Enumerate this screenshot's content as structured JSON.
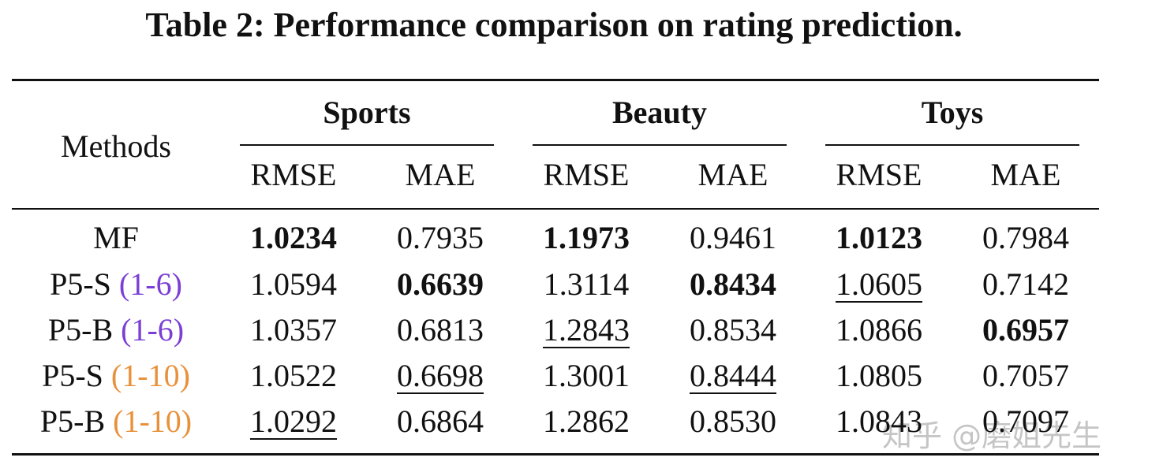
{
  "title": "Table 2: Performance comparison on rating prediction.",
  "table": {
    "header": {
      "methods": "Methods",
      "groups": [
        "Sports",
        "Beauty",
        "Toys"
      ],
      "metrics": [
        "RMSE",
        "MAE",
        "RMSE",
        "MAE",
        "RMSE",
        "MAE"
      ]
    },
    "rows": [
      {
        "method": "MF",
        "cells": [
          "1.0234",
          "0.7935",
          "1.1973",
          "0.9461",
          "1.0123",
          "0.7984"
        ]
      },
      {
        "method": "P5-S",
        "prompt": "(1-6)",
        "cells": [
          "1.0594",
          "0.6639",
          "1.3114",
          "0.8434",
          "1.0605",
          "0.7142"
        ]
      },
      {
        "method": "P5-B",
        "prompt": "(1-6)",
        "cells": [
          "1.0357",
          "0.6813",
          "1.2843",
          "0.8534",
          "1.0866",
          "0.6957"
        ]
      },
      {
        "method": "P5-S",
        "prompt": "(1-10)",
        "cells": [
          "1.0522",
          "0.6698",
          "1.3001",
          "0.8444",
          "1.0805",
          "0.7057"
        ]
      },
      {
        "method": "P5-B",
        "prompt": "(1-10)",
        "cells": [
          "1.0292",
          "0.6864",
          "1.2862",
          "0.8530",
          "1.0843",
          "0.7097"
        ]
      }
    ]
  },
  "watermark": "知乎 @磨姐先生"
}
